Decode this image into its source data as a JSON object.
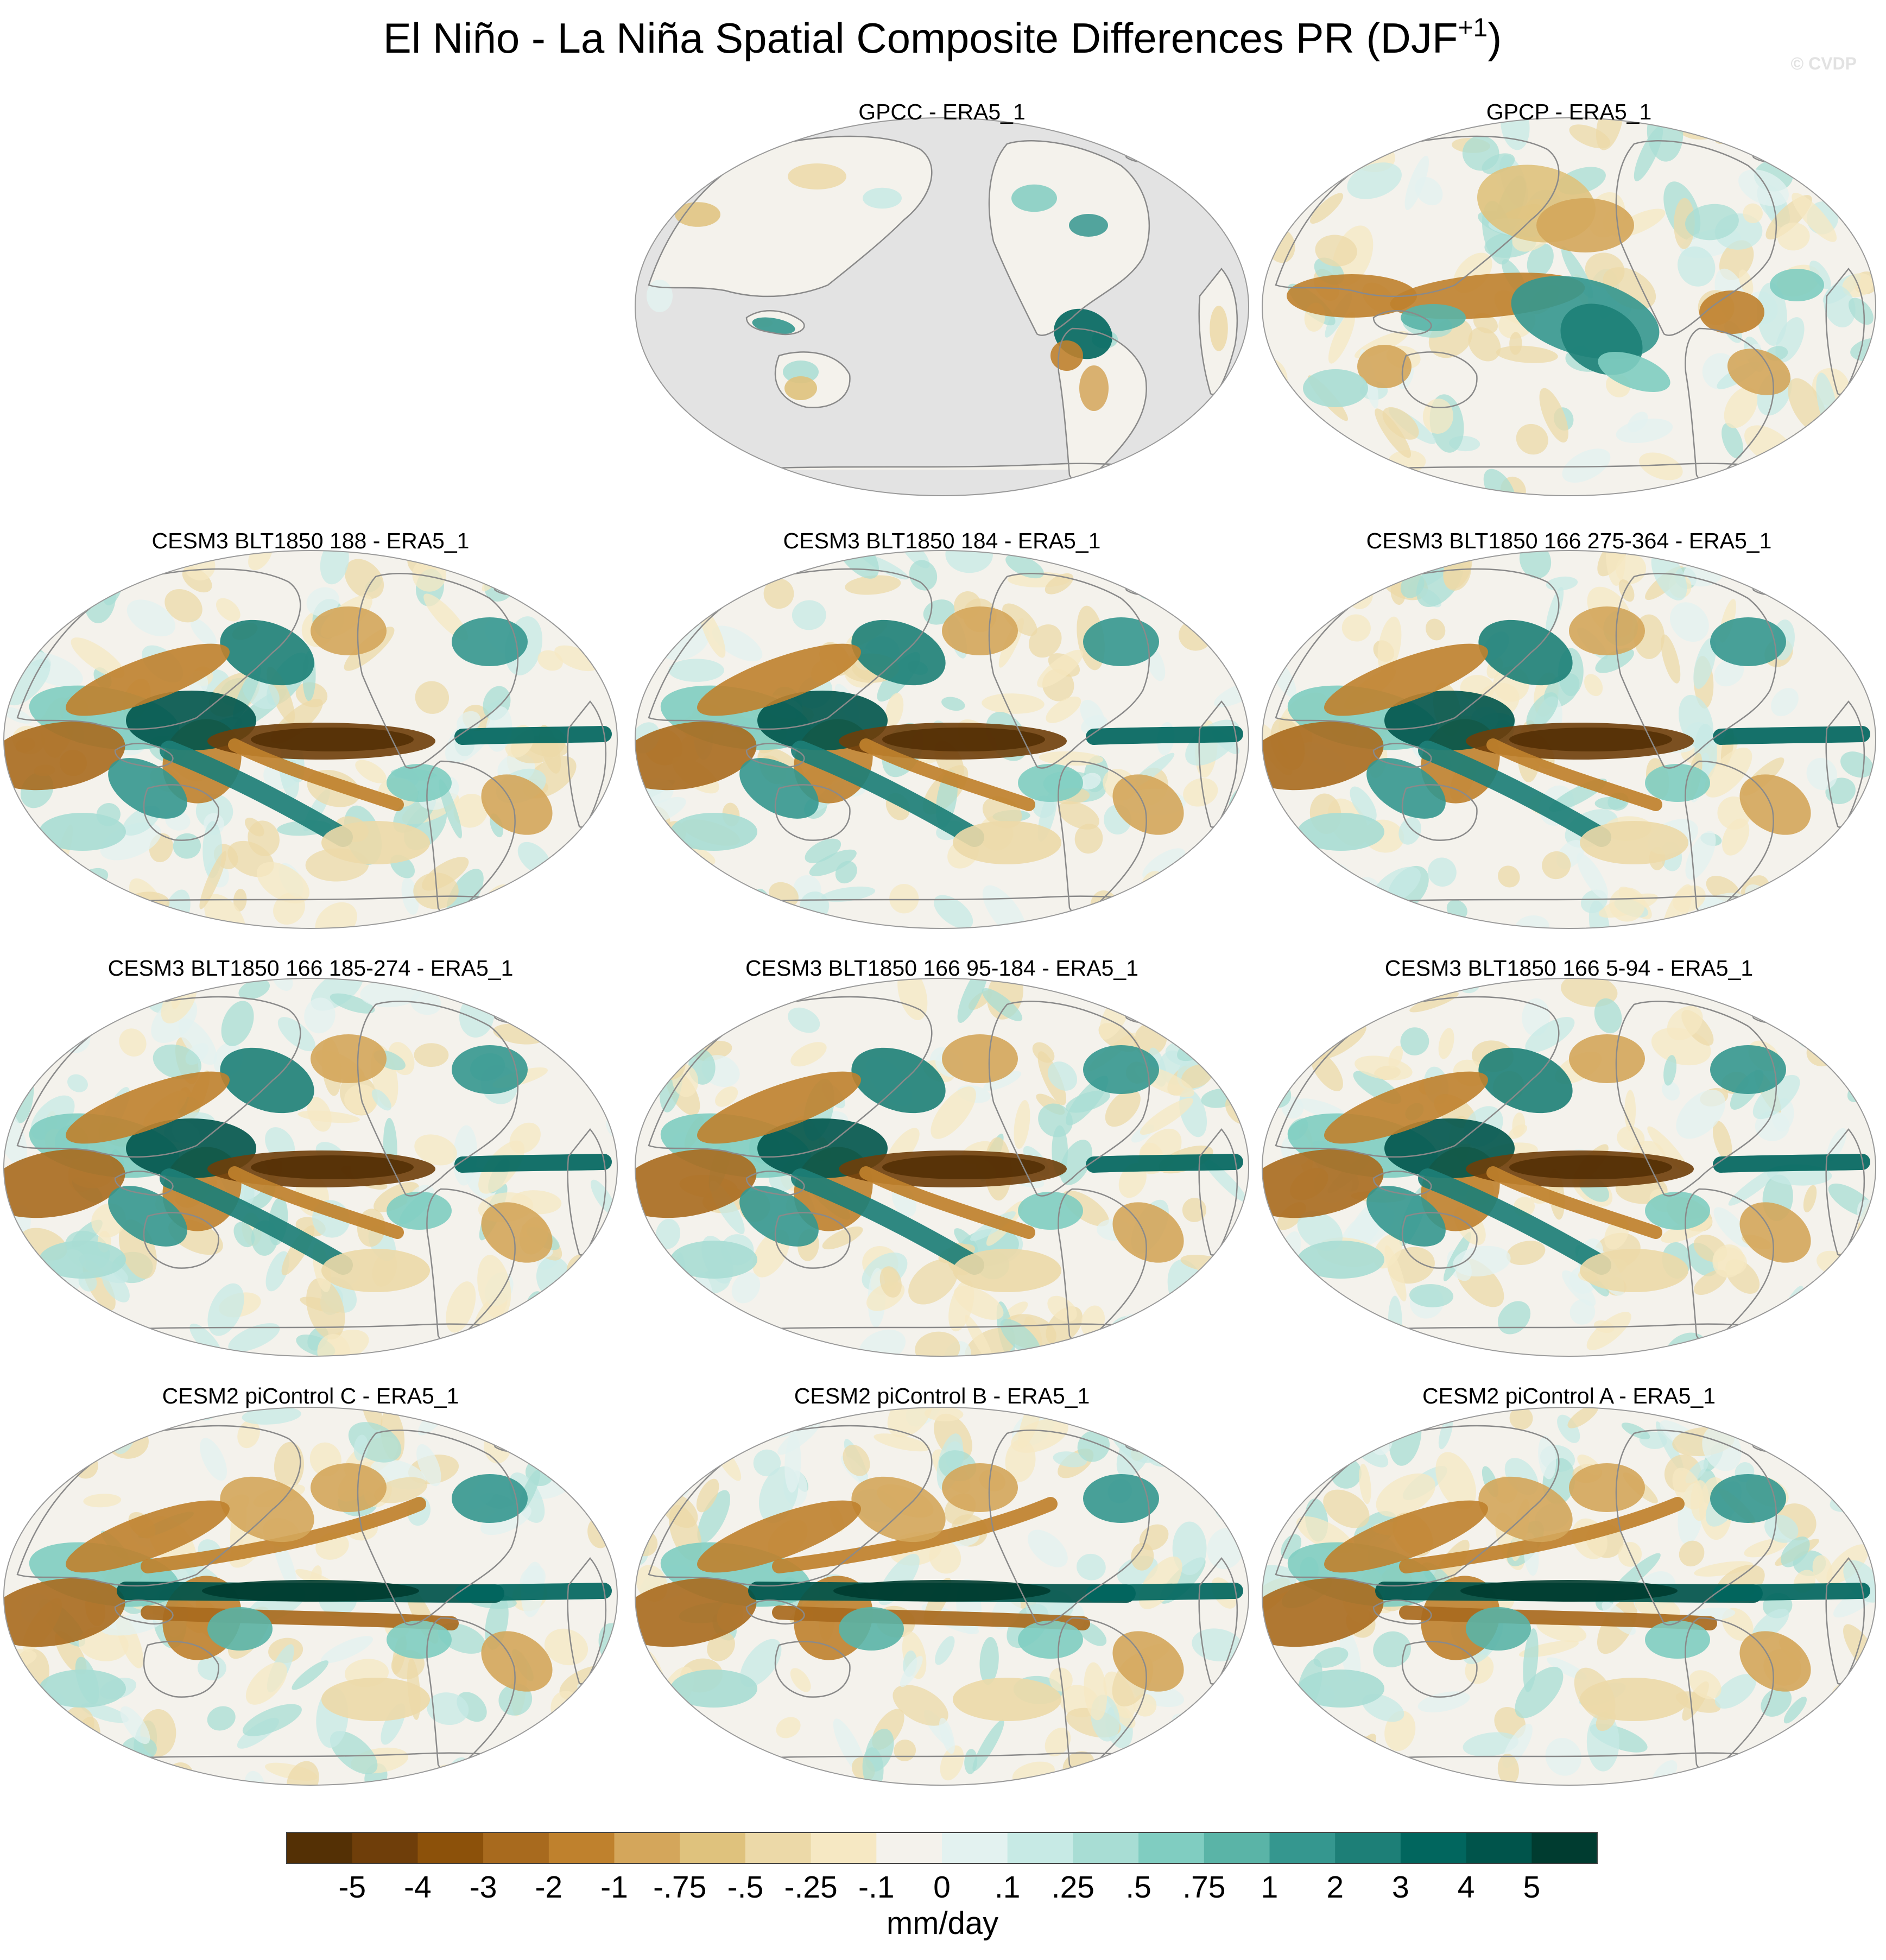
{
  "header": {
    "title_main": "El Niño - La Niña Spatial Composite Differences PR (DJF",
    "title_sup": "+1",
    "title_close": ")",
    "watermark": "© CVDP"
  },
  "chart_data": {
    "type": "map",
    "projection": "robinson",
    "variable": "PR",
    "season": "DJF+1",
    "panels": [
      {
        "id": "gpcc",
        "title": "GPCC - ERA5_1",
        "row": 0,
        "col": 1,
        "land_only": true,
        "regime": "obs"
      },
      {
        "id": "gpcp",
        "title": "GPCP - ERA5_1",
        "row": 0,
        "col": 2,
        "land_only": false,
        "regime": "obs"
      },
      {
        "id": "blt188",
        "title": "CESM3 BLT1850 188 - ERA5_1",
        "row": 1,
        "col": 0,
        "land_only": false,
        "regime": "cesm3"
      },
      {
        "id": "blt184",
        "title": "CESM3 BLT1850 184 - ERA5_1",
        "row": 1,
        "col": 1,
        "land_only": false,
        "regime": "cesm3"
      },
      {
        "id": "blt166a",
        "title": "CESM3 BLT1850 166 275-364 - ERA5_1",
        "row": 1,
        "col": 2,
        "land_only": false,
        "regime": "cesm3"
      },
      {
        "id": "blt166b",
        "title": "CESM3 BLT1850 166 185-274 - ERA5_1",
        "row": 2,
        "col": 0,
        "land_only": false,
        "regime": "cesm3"
      },
      {
        "id": "blt166c",
        "title": "CESM3 BLT1850 166 95-184 - ERA5_1",
        "row": 2,
        "col": 1,
        "land_only": false,
        "regime": "cesm3"
      },
      {
        "id": "blt166d",
        "title": "CESM3 BLT1850 166 5-94 - ERA5_1",
        "row": 2,
        "col": 2,
        "land_only": false,
        "regime": "cesm3"
      },
      {
        "id": "picC",
        "title": "CESM2 piControl C - ERA5_1",
        "row": 3,
        "col": 0,
        "land_only": false,
        "regime": "cesm2"
      },
      {
        "id": "picB",
        "title": "CESM2 piControl B - ERA5_1",
        "row": 3,
        "col": 1,
        "land_only": false,
        "regime": "cesm2"
      },
      {
        "id": "picA",
        "title": "CESM2 piControl A - ERA5_1",
        "row": 3,
        "col": 2,
        "land_only": false,
        "regime": "cesm2"
      }
    ],
    "colorbar": {
      "unit": "mm/day",
      "tick_labels": [
        "-5",
        "-4",
        "-3",
        "-2",
        "-1",
        "-.75",
        "-.5",
        "-.25",
        "-.1",
        "0",
        ".1",
        ".25",
        ".5",
        ".75",
        "1",
        "2",
        "3",
        "4",
        "5"
      ],
      "colors": [
        "#543005",
        "#6f3e0a",
        "#8c510a",
        "#a86a1e",
        "#bf812d",
        "#d4a65b",
        "#dfc27d",
        "#ecd9a8",
        "#f6e8c3",
        "#f4f2ec",
        "#e3f2f0",
        "#c7eae5",
        "#a8ddd4",
        "#80cdc1",
        "#5ab4a7",
        "#35978f",
        "#1d7f77",
        "#01665e",
        "#00544b",
        "#003c30"
      ]
    },
    "map_style": {
      "ocean_mask_color": "#e3e3e3",
      "coastline_color": "#8a8a8a",
      "border_color": "#9a9a9a"
    }
  }
}
